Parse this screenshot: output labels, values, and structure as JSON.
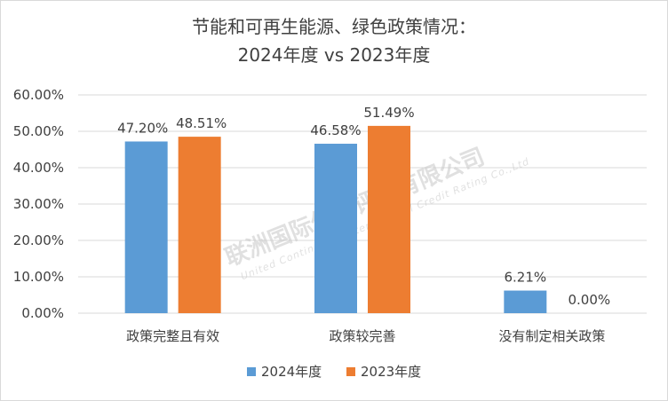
{
  "chart_data": {
    "type": "bar",
    "title_line1": "节能和可再生能源、绿色政策情况：",
    "title_line2": "2024年度 vs 2023年度",
    "categories": [
      "政策完整且有效",
      "政策较完善",
      "没有制定相关政策"
    ],
    "series": [
      {
        "name": "2024年度",
        "values": [
          47.2,
          46.58,
          6.21
        ],
        "labels": [
          "47.20%",
          "46.58%",
          "6.21%"
        ],
        "color": "#5b9bd5"
      },
      {
        "name": "2023年度",
        "values": [
          48.51,
          51.49,
          0.0
        ],
        "labels": [
          "48.51%",
          "51.49%",
          "0.00%"
        ],
        "color": "#ed7d31"
      }
    ],
    "ylim": [
      0,
      60
    ],
    "yticks": [
      0,
      10,
      20,
      30,
      40,
      50,
      60
    ],
    "ytick_labels": [
      "0.00%",
      "10.00%",
      "20.00%",
      "30.00%",
      "40.00%",
      "50.00%",
      "60.00%"
    ],
    "grid": true,
    "legend_position": "bottom",
    "gridline_color": "#d9d9d9"
  },
  "watermark": {
    "cn": "联洲国际信用评级有限公司",
    "en": "United Continental International Credit Rating Co.,Ltd"
  }
}
